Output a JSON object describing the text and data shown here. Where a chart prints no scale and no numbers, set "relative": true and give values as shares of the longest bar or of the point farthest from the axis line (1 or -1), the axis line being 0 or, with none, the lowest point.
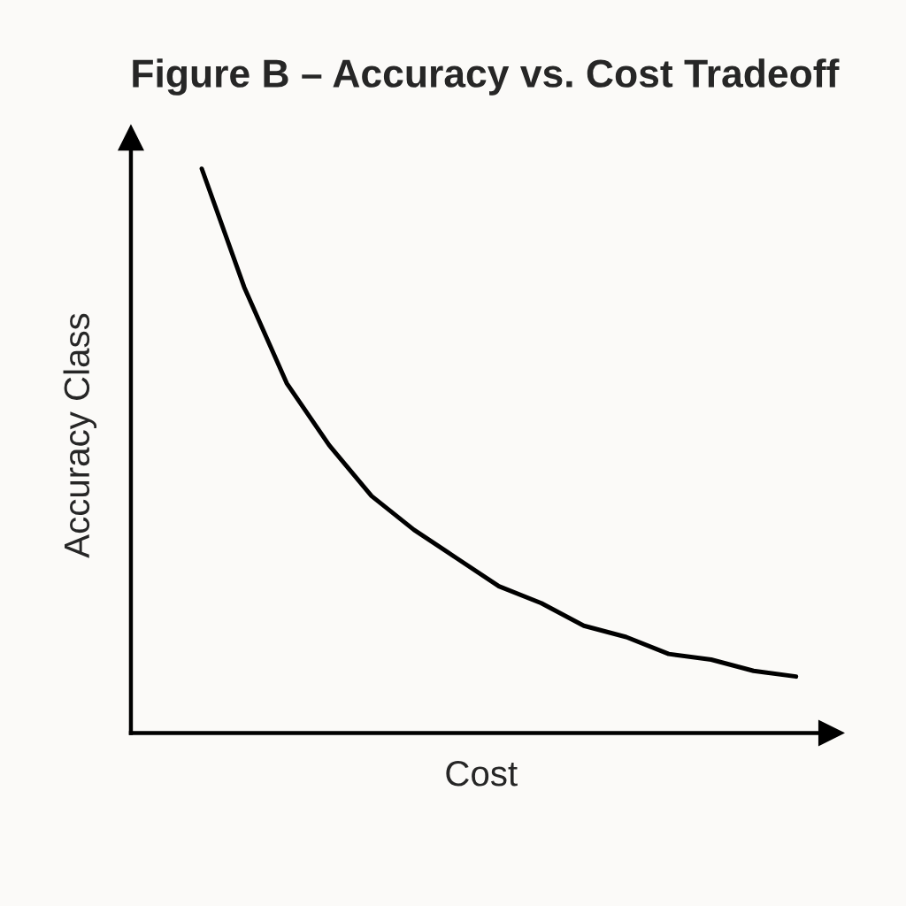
{
  "chart_data": {
    "type": "line",
    "title": "Figure B – Accuracy vs. Cost Tradeoff",
    "xlabel": "Cost",
    "ylabel": "Accuracy Class",
    "relative": true,
    "categories": [
      null,
      null,
      null,
      null,
      null,
      null,
      null,
      null,
      null,
      null,
      null,
      null,
      null,
      null,
      null
    ],
    "series": [
      {
        "color": "#000000",
        "values": [
          1.0,
          0.79,
          0.62,
          0.51,
          0.42,
          0.36,
          0.31,
          0.26,
          0.23,
          0.19,
          0.17,
          0.14,
          0.13,
          0.11,
          0.1
        ]
      }
    ],
    "tick_labels": false,
    "marker": "none",
    "line_style": "solid"
  }
}
